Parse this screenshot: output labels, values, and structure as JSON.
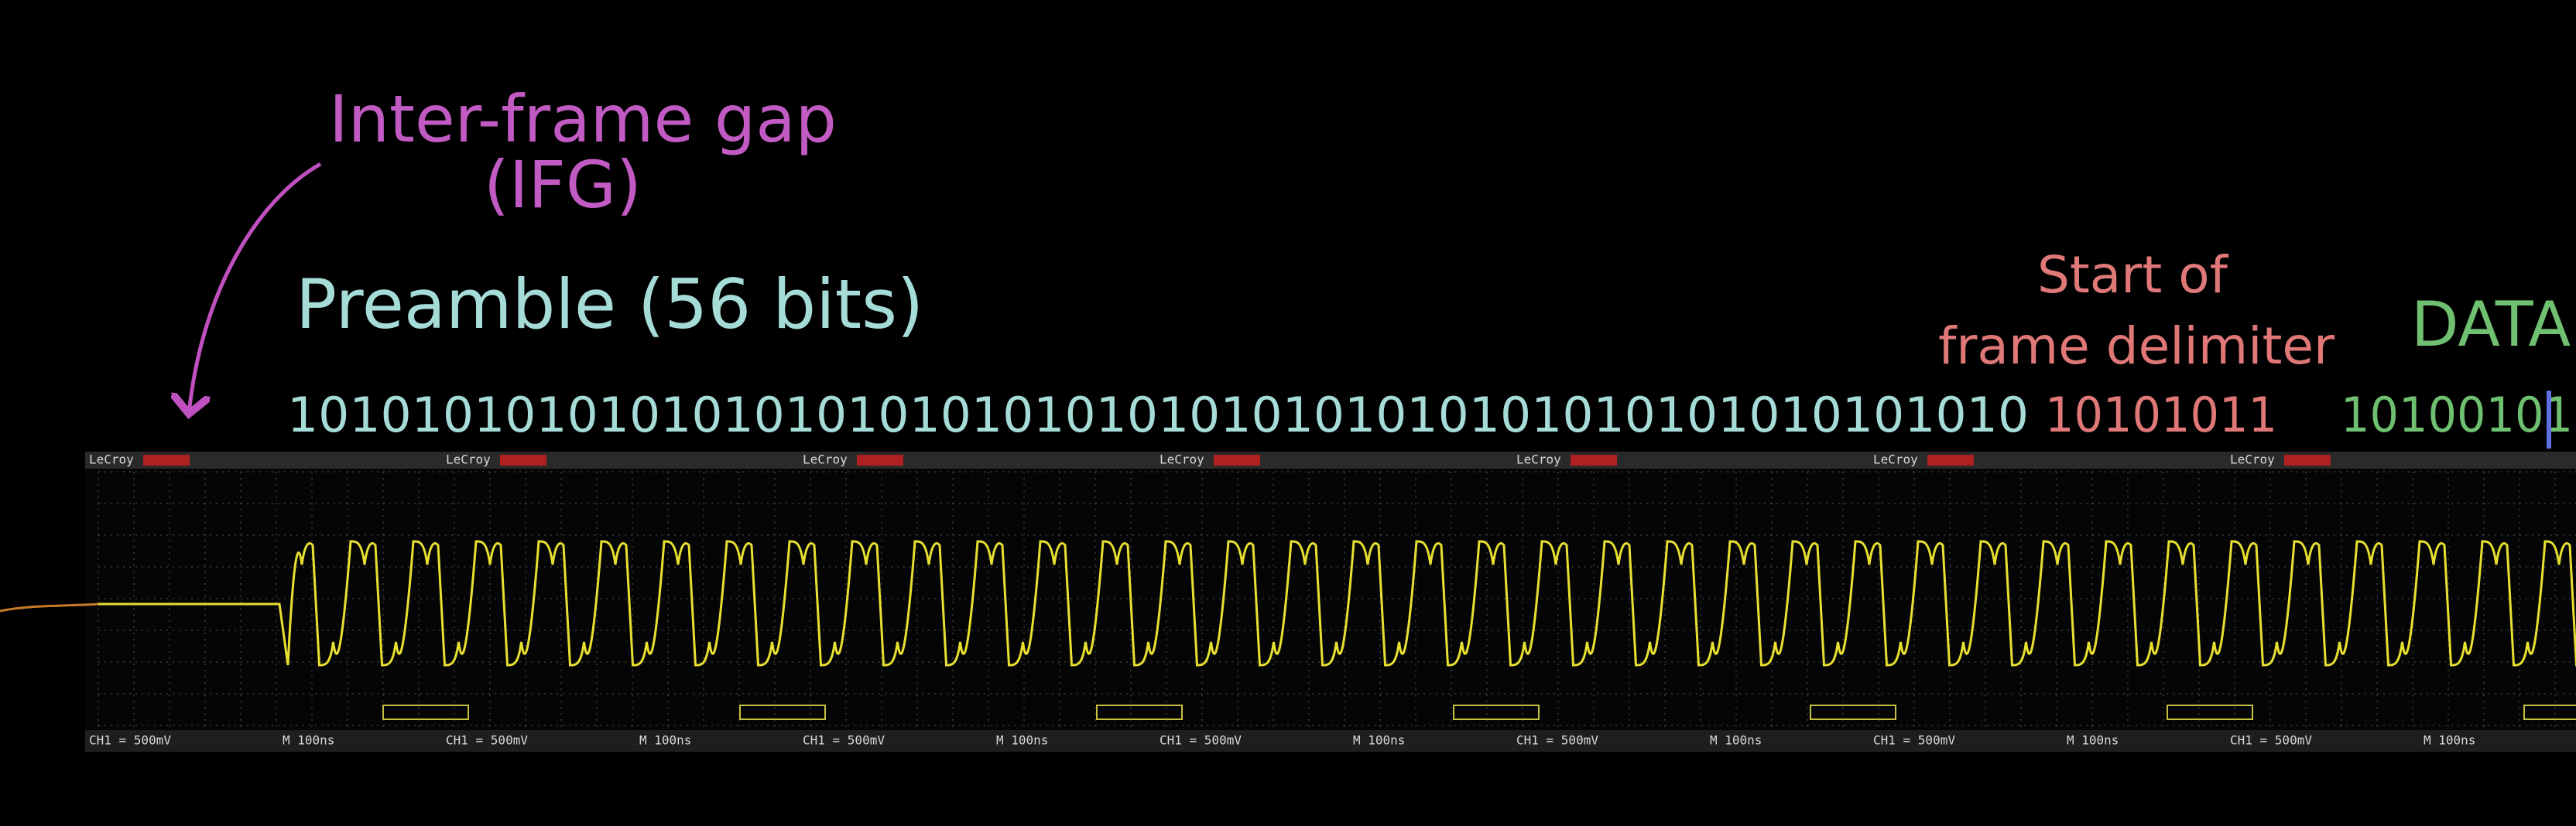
{
  "annotations": {
    "ifg": [
      "Inter-frame gap",
      "(IFG)"
    ],
    "preamble": "Preamble (56 bits)",
    "sfd": [
      "Start of",
      "frame delimiter"
    ],
    "data": "DATA"
  },
  "bits": {
    "preamble": "10101010101010101010101010101010101010101010101010101010",
    "sfd": "10101011",
    "data": "10100101"
  },
  "scope": {
    "brand": "LeCroy",
    "channel": "CH1 = 500mV",
    "timebase": "M 100ns"
  }
}
